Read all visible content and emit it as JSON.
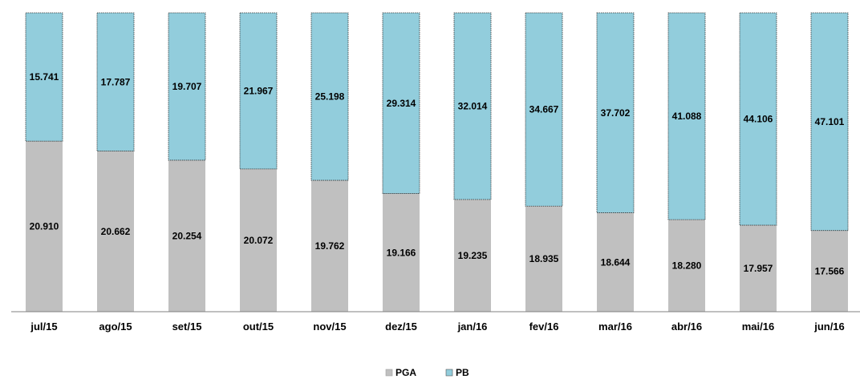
{
  "chart_data": {
    "type": "bar",
    "stacked": true,
    "categories": [
      "jul/15",
      "ago/15",
      "set/15",
      "out/15",
      "nov/15",
      "dez/15",
      "jan/16",
      "fev/16",
      "mar/16",
      "abr/16",
      "mai/16",
      "jun/16"
    ],
    "series": [
      {
        "name": "PGA",
        "color": "#c0c0c0",
        "values": [
          20910,
          20662,
          20254,
          20072,
          19762,
          19166,
          19235,
          18935,
          18644,
          18280,
          17957,
          17566
        ],
        "labels": [
          "20.910",
          "20.662",
          "20.254",
          "20.072",
          "19.762",
          "19.166",
          "19.235",
          "18.935",
          "18.644",
          "18.280",
          "17.957",
          "17.566"
        ]
      },
      {
        "name": "PB",
        "color": "#92cddc",
        "values": [
          15741,
          17787,
          19707,
          21967,
          25198,
          29314,
          32014,
          34667,
          37702,
          41088,
          44106,
          47101
        ],
        "labels": [
          "15.741",
          "17.787",
          "19.707",
          "21.967",
          "25.198",
          "29.314",
          "32.014",
          "34.667",
          "37.702",
          "41.088",
          "44.106",
          "47.101"
        ]
      }
    ],
    "normalized": true,
    "legend_position": "bottom",
    "grid": false
  }
}
